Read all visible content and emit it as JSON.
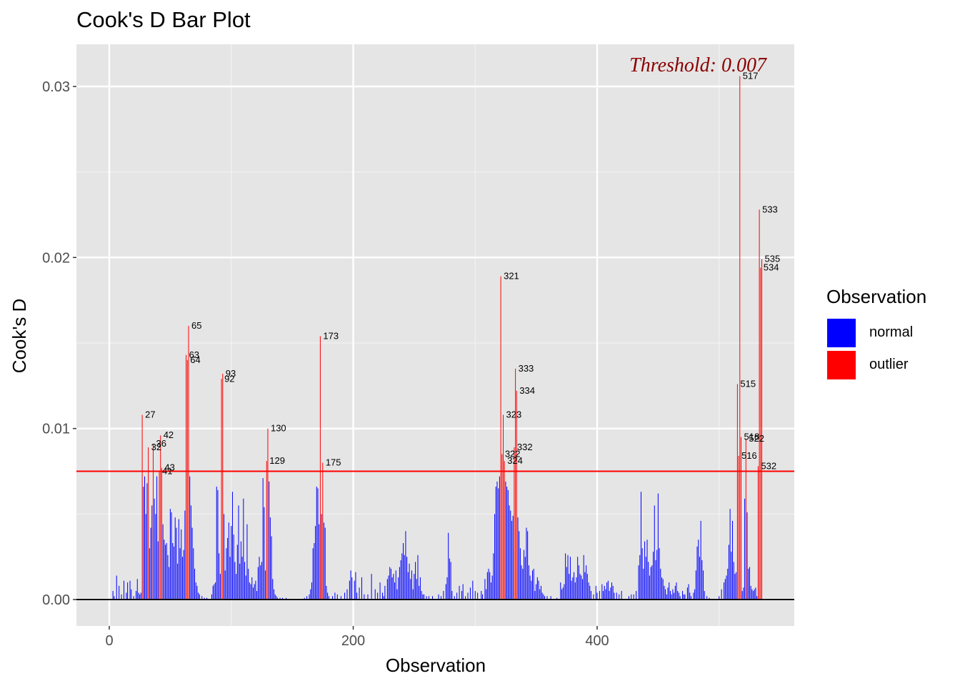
{
  "chart_data": {
    "type": "bar",
    "title": "Cook's D Bar Plot",
    "xlabel": "Observation",
    "ylabel": "Cook's D",
    "xlim": [
      -25,
      560
    ],
    "ylim": [
      -0.0015,
      0.032
    ],
    "x_ticks": [
      0,
      200,
      400
    ],
    "y_ticks": [
      0.0,
      0.01,
      0.02,
      0.03
    ],
    "y_tick_labels": [
      "0.00",
      "0.01",
      "0.02",
      "0.03"
    ],
    "x_tick_labels": [
      "0",
      "200",
      "400"
    ],
    "threshold": 0.0075,
    "threshold_label": "Threshold: 0.007",
    "legend": {
      "title": "Observation",
      "placement": "right",
      "items": [
        {
          "label": "normal",
          "color": "#0000ff"
        },
        {
          "label": "outlier",
          "color": "#ff0000"
        }
      ]
    },
    "colors": {
      "normal": "#0000ff",
      "outlier": "#ff0000",
      "threshold": "#ff0000",
      "panel": "#e5e5e5",
      "threshold_text": "#8b0000"
    },
    "outliers": [
      {
        "obs": 27,
        "value": 0.0108
      },
      {
        "obs": 32,
        "value": 0.0089
      },
      {
        "obs": 36,
        "value": 0.0091
      },
      {
        "obs": 41,
        "value": 0.0075
      },
      {
        "obs": 42,
        "value": 0.0096
      },
      {
        "obs": 43,
        "value": 0.0077
      },
      {
        "obs": 63,
        "value": 0.0143
      },
      {
        "obs": 64,
        "value": 0.014
      },
      {
        "obs": 65,
        "value": 0.016
      },
      {
        "obs": 92,
        "value": 0.0129
      },
      {
        "obs": 93,
        "value": 0.0132
      },
      {
        "obs": 129,
        "value": 0.0081
      },
      {
        "obs": 130,
        "value": 0.01
      },
      {
        "obs": 173,
        "value": 0.0154
      },
      {
        "obs": 175,
        "value": 0.008
      },
      {
        "obs": 321,
        "value": 0.0189
      },
      {
        "obs": 322,
        "value": 0.0085
      },
      {
        "obs": 323,
        "value": 0.0108
      },
      {
        "obs": 324,
        "value": 0.0081
      },
      {
        "obs": 332,
        "value": 0.0089
      },
      {
        "obs": 333,
        "value": 0.0135
      },
      {
        "obs": 334,
        "value": 0.0122
      },
      {
        "obs": 515,
        "value": 0.0126
      },
      {
        "obs": 516,
        "value": 0.0084
      },
      {
        "obs": 517,
        "value": 0.0306
      },
      {
        "obs": 518,
        "value": 0.0095
      },
      {
        "obs": 522,
        "value": 0.0094
      },
      {
        "obs": 532,
        "value": 0.0078
      },
      {
        "obs": 533,
        "value": 0.0228
      },
      {
        "obs": 534,
        "value": 0.0194
      },
      {
        "obs": 535,
        "value": 0.0199
      }
    ],
    "normal_bars": [
      [
        3,
        0.0005
      ],
      [
        4,
        0.0002
      ],
      [
        6,
        0.0014
      ],
      [
        8,
        0.0008
      ],
      [
        10,
        0.0003
      ],
      [
        12,
        0.0011
      ],
      [
        14,
        0.0004
      ],
      [
        15,
        0.001
      ],
      [
        17,
        0.0011
      ],
      [
        18,
        0.0006
      ],
      [
        20,
        0.0002
      ],
      [
        22,
        0.0005
      ],
      [
        23,
        0.0012
      ],
      [
        24,
        0.0004
      ],
      [
        25,
        0.0003
      ],
      [
        26,
        0.0004
      ],
      [
        28,
        0.0066
      ],
      [
        29,
        0.0072
      ],
      [
        30,
        0.005
      ],
      [
        31,
        0.0068
      ],
      [
        33,
        0.003
      ],
      [
        34,
        0.0042
      ],
      [
        35,
        0.0055
      ],
      [
        37,
        0.0059
      ],
      [
        38,
        0.005
      ],
      [
        39,
        0.0072
      ],
      [
        40,
        0.0034
      ],
      [
        44,
        0.0044
      ],
      [
        45,
        0.0035
      ],
      [
        46,
        0.0032
      ],
      [
        47,
        0.0033
      ],
      [
        48,
        0.0026
      ],
      [
        49,
        0.0019
      ],
      [
        50,
        0.0053
      ],
      [
        51,
        0.0051
      ],
      [
        52,
        0.0033
      ],
      [
        53,
        0.0031
      ],
      [
        54,
        0.0048
      ],
      [
        55,
        0.0042
      ],
      [
        56,
        0.0021
      ],
      [
        57,
        0.0047
      ],
      [
        58,
        0.003
      ],
      [
        59,
        0.0041
      ],
      [
        60,
        0.0025
      ],
      [
        61,
        0.0029
      ],
      [
        62,
        0.0052
      ],
      [
        66,
        0.0072
      ],
      [
        67,
        0.0055
      ],
      [
        68,
        0.0042
      ],
      [
        69,
        0.003
      ],
      [
        70,
        0.0018
      ],
      [
        71,
        0.001
      ],
      [
        72,
        0.0008
      ],
      [
        73,
        0.0004
      ],
      [
        74,
        0.0003
      ],
      [
        76,
        0.0002
      ],
      [
        78,
        0.0001
      ],
      [
        80,
        0.0001
      ],
      [
        84,
        0.0003
      ],
      [
        85,
        0.0008
      ],
      [
        86,
        0.0009
      ],
      [
        87,
        0.001
      ],
      [
        88,
        0.0066
      ],
      [
        89,
        0.0064
      ],
      [
        90,
        0.0027
      ],
      [
        91,
        0.0015
      ],
      [
        94,
        0.005
      ],
      [
        95,
        0.0017
      ],
      [
        96,
        0.003
      ],
      [
        97,
        0.0036
      ],
      [
        98,
        0.0045
      ],
      [
        99,
        0.0025
      ],
      [
        100,
        0.0043
      ],
      [
        101,
        0.0063
      ],
      [
        102,
        0.0038
      ],
      [
        103,
        0.0022
      ],
      [
        104,
        0.0015
      ],
      [
        105,
        0.0032
      ],
      [
        106,
        0.0055
      ],
      [
        107,
        0.0021
      ],
      [
        108,
        0.0034
      ],
      [
        109,
        0.0025
      ],
      [
        110,
        0.0059
      ],
      [
        111,
        0.0022
      ],
      [
        112,
        0.0014
      ],
      [
        113,
        0.0044
      ],
      [
        114,
        0.0018
      ],
      [
        115,
        0.001
      ],
      [
        116,
        0.0009
      ],
      [
        117,
        0.0013
      ],
      [
        118,
        0.0007
      ],
      [
        119,
        0.0009
      ],
      [
        120,
        0.0011
      ],
      [
        121,
        0.0005
      ],
      [
        122,
        0.0019
      ],
      [
        123,
        0.0025
      ],
      [
        124,
        0.002
      ],
      [
        125,
        0.0022
      ],
      [
        126,
        0.0071
      ],
      [
        127,
        0.0054
      ],
      [
        128,
        0.0017
      ],
      [
        131,
        0.0069
      ],
      [
        132,
        0.0048
      ],
      [
        133,
        0.0037
      ],
      [
        134,
        0.0012
      ],
      [
        135,
        0.0006
      ],
      [
        136,
        0.0003
      ],
      [
        137,
        0.0002
      ],
      [
        138,
        0.0001
      ],
      [
        140,
        0.0001
      ],
      [
        142,
        0.0001
      ],
      [
        145,
        0.0001
      ],
      [
        160,
        0.0001
      ],
      [
        162,
        0.0002
      ],
      [
        164,
        0.0003
      ],
      [
        165,
        0.0006
      ],
      [
        166,
        0.001
      ],
      [
        167,
        0.003
      ],
      [
        168,
        0.0033
      ],
      [
        169,
        0.0043
      ],
      [
        170,
        0.0066
      ],
      [
        171,
        0.0065
      ],
      [
        172,
        0.0044
      ],
      [
        174,
        0.005
      ],
      [
        176,
        0.0045
      ],
      [
        177,
        0.0042
      ],
      [
        178,
        0.0008
      ],
      [
        179,
        0.0004
      ],
      [
        180,
        0.0002
      ],
      [
        183,
        0.0002
      ],
      [
        185,
        0.0004
      ],
      [
        187,
        0.0003
      ],
      [
        190,
        0.0002
      ],
      [
        193,
        0.0004
      ],
      [
        195,
        0.0006
      ],
      [
        197,
        0.0011
      ],
      [
        198,
        0.0017
      ],
      [
        199,
        0.0013
      ],
      [
        201,
        0.0011
      ],
      [
        202,
        0.0016
      ],
      [
        203,
        0.0004
      ],
      [
        205,
        0.0007
      ],
      [
        207,
        0.0013
      ],
      [
        209,
        0.0003
      ],
      [
        212,
        0.0003
      ],
      [
        215,
        0.0015
      ],
      [
        218,
        0.0006
      ],
      [
        220,
        0.0004
      ],
      [
        222,
        0.001
      ],
      [
        224,
        0.0004
      ],
      [
        225,
        0.0002
      ],
      [
        226,
        0.0008
      ],
      [
        228,
        0.0012
      ],
      [
        229,
        0.0014
      ],
      [
        230,
        0.0019
      ],
      [
        231,
        0.0018
      ],
      [
        232,
        0.0013
      ],
      [
        233,
        0.0015
      ],
      [
        234,
        0.001
      ],
      [
        235,
        0.0017
      ],
      [
        236,
        0.0006
      ],
      [
        237,
        0.0013
      ],
      [
        238,
        0.0019
      ],
      [
        239,
        0.0023
      ],
      [
        240,
        0.0027
      ],
      [
        241,
        0.0033
      ],
      [
        242,
        0.0026
      ],
      [
        243,
        0.004
      ],
      [
        244,
        0.0025
      ],
      [
        245,
        0.0016
      ],
      [
        246,
        0.0021
      ],
      [
        247,
        0.0012
      ],
      [
        248,
        0.0017
      ],
      [
        249,
        0.0006
      ],
      [
        250,
        0.0015
      ],
      [
        251,
        0.0022
      ],
      [
        252,
        0.0012
      ],
      [
        253,
        0.0026
      ],
      [
        254,
        0.0008
      ],
      [
        255,
        0.0013
      ],
      [
        256,
        0.0005
      ],
      [
        257,
        0.0003
      ],
      [
        258,
        0.0003
      ],
      [
        260,
        0.0002
      ],
      [
        262,
        0.0002
      ],
      [
        265,
        0.0002
      ],
      [
        270,
        0.0003
      ],
      [
        272,
        0.0002
      ],
      [
        274,
        0.0005
      ],
      [
        276,
        0.0009
      ],
      [
        277,
        0.0013
      ],
      [
        278,
        0.0039
      ],
      [
        279,
        0.0024
      ],
      [
        280,
        0.0022
      ],
      [
        281,
        0.0005
      ],
      [
        283,
        0.0002
      ],
      [
        285,
        0.0004
      ],
      [
        287,
        0.0008
      ],
      [
        289,
        0.0005
      ],
      [
        290,
        0.0009
      ],
      [
        292,
        0.0002
      ],
      [
        294,
        0.0004
      ],
      [
        296,
        0.0007
      ],
      [
        298,
        0.0011
      ],
      [
        300,
        0.0005
      ],
      [
        302,
        0.0004
      ],
      [
        305,
        0.0005
      ],
      [
        306,
        0.0003
      ],
      [
        308,
        0.0012
      ],
      [
        309,
        0.0006
      ],
      [
        310,
        0.0016
      ],
      [
        311,
        0.0018
      ],
      [
        312,
        0.0016
      ],
      [
        313,
        0.001
      ],
      [
        314,
        0.0014
      ],
      [
        315,
        0.0027
      ],
      [
        316,
        0.005
      ],
      [
        317,
        0.0066
      ],
      [
        318,
        0.0069
      ],
      [
        319,
        0.0065
      ],
      [
        320,
        0.0072
      ],
      [
        325,
        0.0069
      ],
      [
        326,
        0.0066
      ],
      [
        327,
        0.0064
      ],
      [
        328,
        0.0055
      ],
      [
        329,
        0.0052
      ],
      [
        330,
        0.0046
      ],
      [
        331,
        0.0049
      ],
      [
        335,
        0.0048
      ],
      [
        336,
        0.004
      ],
      [
        337,
        0.003
      ],
      [
        338,
        0.002
      ],
      [
        339,
        0.0018
      ],
      [
        340,
        0.0029
      ],
      [
        341,
        0.0025
      ],
      [
        342,
        0.0042
      ],
      [
        343,
        0.004
      ],
      [
        344,
        0.002
      ],
      [
        345,
        0.0014
      ],
      [
        346,
        0.0011
      ],
      [
        347,
        0.0017
      ],
      [
        348,
        0.0018
      ],
      [
        349,
        0.0005
      ],
      [
        350,
        0.0009
      ],
      [
        351,
        0.0013
      ],
      [
        352,
        0.0011
      ],
      [
        353,
        0.0006
      ],
      [
        354,
        0.0008
      ],
      [
        355,
        0.0004
      ],
      [
        356,
        0.0003
      ],
      [
        357,
        0.0002
      ],
      [
        359,
        0.0002
      ],
      [
        362,
        0.0002
      ],
      [
        367,
        0.0001
      ],
      [
        370,
        0.001
      ],
      [
        371,
        0.0006
      ],
      [
        372,
        0.0007
      ],
      [
        373,
        0.0009
      ],
      [
        374,
        0.0027
      ],
      [
        375,
        0.0019
      ],
      [
        376,
        0.0026
      ],
      [
        377,
        0.0015
      ],
      [
        378,
        0.0025
      ],
      [
        379,
        0.0011
      ],
      [
        380,
        0.0013
      ],
      [
        381,
        0.0016
      ],
      [
        382,
        0.001
      ],
      [
        383,
        0.0013
      ],
      [
        384,
        0.0025
      ],
      [
        385,
        0.002
      ],
      [
        386,
        0.0015
      ],
      [
        387,
        0.0014
      ],
      [
        388,
        0.0012
      ],
      [
        389,
        0.0026
      ],
      [
        390,
        0.0016
      ],
      [
        391,
        0.002
      ],
      [
        392,
        0.0015
      ],
      [
        393,
        0.001
      ],
      [
        394,
        0.0008
      ],
      [
        395,
        0.0005
      ],
      [
        397,
        0.0003
      ],
      [
        399,
        0.0008
      ],
      [
        400,
        0.0004
      ],
      [
        402,
        0.0005
      ],
      [
        404,
        0.0009
      ],
      [
        405,
        0.0005
      ],
      [
        406,
        0.0008
      ],
      [
        407,
        0.0006
      ],
      [
        408,
        0.001
      ],
      [
        409,
        0.0011
      ],
      [
        410,
        0.0005
      ],
      [
        411,
        0.0007
      ],
      [
        412,
        0.001
      ],
      [
        413,
        0.0008
      ],
      [
        414,
        0.0004
      ],
      [
        416,
        0.0004
      ],
      [
        418,
        0.0003
      ],
      [
        420,
        0.0005
      ],
      [
        426,
        0.0002
      ],
      [
        428,
        0.0003
      ],
      [
        430,
        0.0003
      ],
      [
        432,
        0.0005
      ],
      [
        434,
        0.002
      ],
      [
        435,
        0.0026
      ],
      [
        436,
        0.0063
      ],
      [
        437,
        0.003
      ],
      [
        438,
        0.0018
      ],
      [
        439,
        0.0034
      ],
      [
        440,
        0.0025
      ],
      [
        441,
        0.0035
      ],
      [
        442,
        0.0022
      ],
      [
        443,
        0.0014
      ],
      [
        444,
        0.0019
      ],
      [
        445,
        0.002
      ],
      [
        446,
        0.0028
      ],
      [
        447,
        0.0055
      ],
      [
        448,
        0.0023
      ],
      [
        449,
        0.0029
      ],
      [
        450,
        0.0062
      ],
      [
        451,
        0.003
      ],
      [
        452,
        0.0018
      ],
      [
        453,
        0.0013
      ],
      [
        454,
        0.0012
      ],
      [
        455,
        0.0008
      ],
      [
        456,
        0.0006
      ],
      [
        457,
        0.0003
      ],
      [
        458,
        0.0007
      ],
      [
        459,
        0.001
      ],
      [
        460,
        0.0005
      ],
      [
        461,
        0.0003
      ],
      [
        462,
        0.0006
      ],
      [
        463,
        0.0004
      ],
      [
        464,
        0.0008
      ],
      [
        465,
        0.001
      ],
      [
        466,
        0.0005
      ],
      [
        467,
        0.0004
      ],
      [
        468,
        0.0002
      ],
      [
        470,
        0.0005
      ],
      [
        471,
        0.0003
      ],
      [
        472,
        0.0003
      ],
      [
        474,
        0.0007
      ],
      [
        475,
        0.0009
      ],
      [
        476,
        0.0004
      ],
      [
        477,
        0.0002
      ],
      [
        479,
        0.0004
      ],
      [
        480,
        0.0006
      ],
      [
        481,
        0.0017
      ],
      [
        482,
        0.0031
      ],
      [
        483,
        0.0035
      ],
      [
        484,
        0.0025
      ],
      [
        485,
        0.0046
      ],
      [
        486,
        0.0023
      ],
      [
        487,
        0.0017
      ],
      [
        488,
        0.0005
      ],
      [
        490,
        0.0002
      ],
      [
        492,
        0.0001
      ],
      [
        500,
        0.0002
      ],
      [
        502,
        0.0006
      ],
      [
        504,
        0.001
      ],
      [
        505,
        0.0012
      ],
      [
        506,
        0.0014
      ],
      [
        507,
        0.0018
      ],
      [
        508,
        0.0032
      ],
      [
        509,
        0.0053
      ],
      [
        510,
        0.0028
      ],
      [
        511,
        0.0046
      ],
      [
        512,
        0.0022
      ],
      [
        513,
        0.0015
      ],
      [
        514,
        0.0016
      ],
      [
        519,
        0.0005
      ],
      [
        520,
        0.0007
      ],
      [
        521,
        0.0059
      ],
      [
        523,
        0.0051
      ],
      [
        524,
        0.0018
      ],
      [
        525,
        0.0019
      ],
      [
        526,
        0.0008
      ],
      [
        527,
        0.0006
      ],
      [
        528,
        0.0005
      ],
      [
        529,
        0.0006
      ],
      [
        530,
        0.0007
      ],
      [
        531,
        0.0002
      ]
    ]
  }
}
